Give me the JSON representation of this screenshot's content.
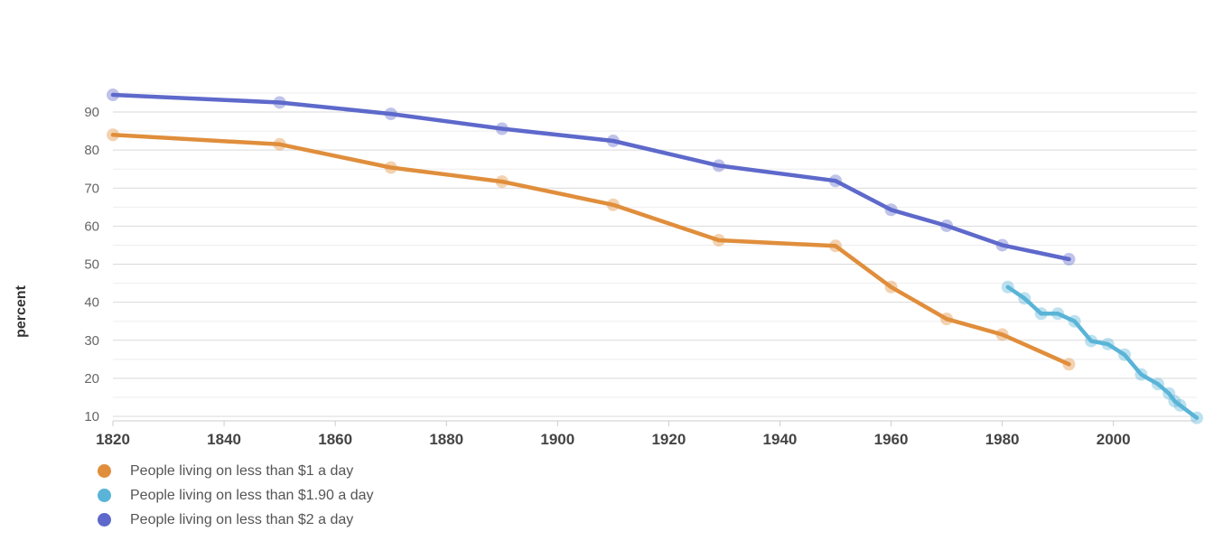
{
  "chart_data": {
    "type": "line",
    "title": "",
    "xlabel": "",
    "ylabel": "percent",
    "xlim": [
      1820,
      2015
    ],
    "ylim": [
      10,
      95
    ],
    "x_ticks": [
      1820,
      1840,
      1860,
      1880,
      1900,
      1920,
      1940,
      1960,
      1980,
      2000
    ],
    "y_ticks": [
      10,
      20,
      30,
      40,
      50,
      60,
      70,
      80,
      90
    ],
    "grid": true,
    "legend_position": "bottom-left",
    "series": [
      {
        "name": "People living on less than $1 a day",
        "color": "#e08e3c",
        "points": [
          [
            1820,
            84
          ],
          [
            1850,
            81.5
          ],
          [
            1870,
            75.4
          ],
          [
            1890,
            71.7
          ],
          [
            1910,
            65.6
          ],
          [
            1929,
            56.3
          ],
          [
            1950,
            54.8
          ],
          [
            1960,
            44
          ],
          [
            1970,
            35.6
          ],
          [
            1980,
            31.5
          ],
          [
            1992,
            23.7
          ]
        ]
      },
      {
        "name": "People living on less than $1.90 a day",
        "color": "#5ab4d8",
        "points": [
          [
            1981,
            44
          ],
          [
            1984,
            41
          ],
          [
            1987,
            37
          ],
          [
            1990,
            37
          ],
          [
            1993,
            35
          ],
          [
            1996,
            29.8
          ],
          [
            1999,
            29
          ],
          [
            2002,
            26.2
          ],
          [
            2005,
            21
          ],
          [
            2008,
            18.5
          ],
          [
            2010,
            16
          ],
          [
            2011,
            14
          ],
          [
            2012,
            12.9
          ],
          [
            2015,
            9.6
          ]
        ]
      },
      {
        "name": "People living on less than $2 a day",
        "color": "#5e69cb",
        "points": [
          [
            1820,
            94.5
          ],
          [
            1850,
            92.5
          ],
          [
            1870,
            89.5
          ],
          [
            1890,
            85.6
          ],
          [
            1910,
            82.4
          ],
          [
            1929,
            75.9
          ],
          [
            1950,
            71.9
          ],
          [
            1960,
            64.3
          ],
          [
            1970,
            60.1
          ],
          [
            1980,
            55
          ],
          [
            1992,
            51.3
          ]
        ]
      }
    ]
  }
}
